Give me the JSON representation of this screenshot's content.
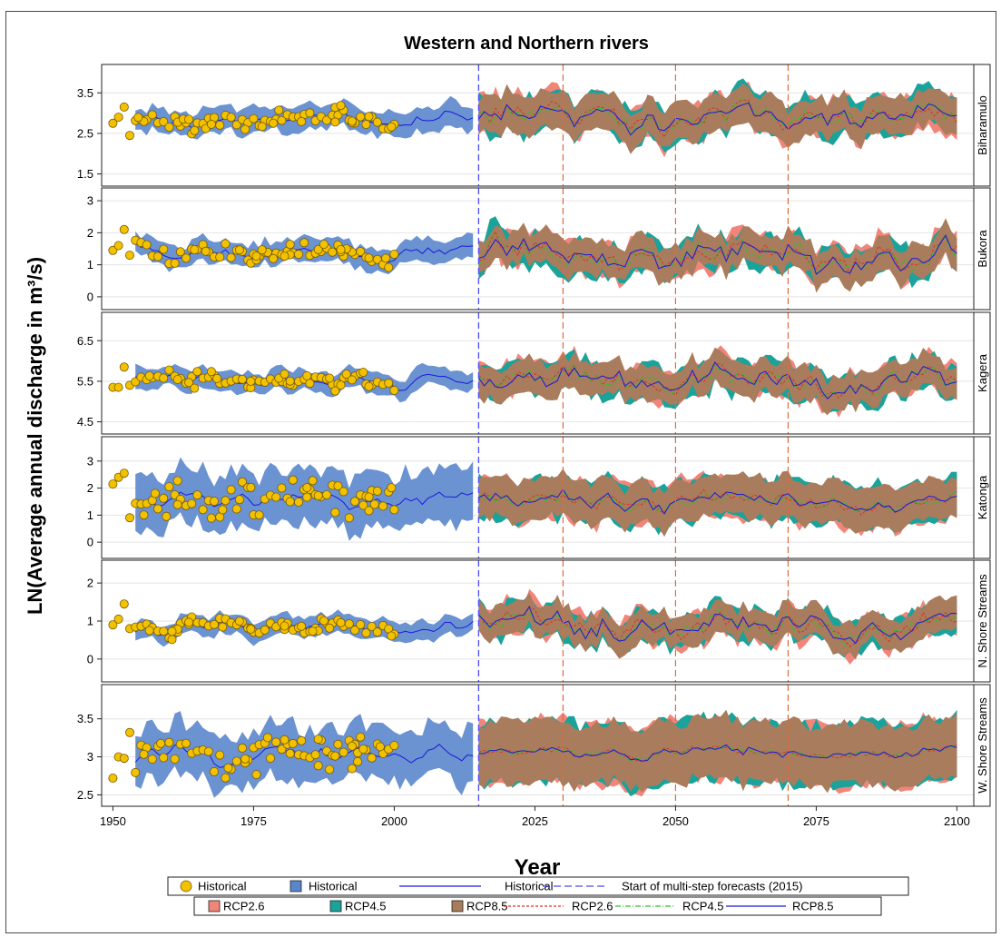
{
  "chart_data": {
    "type": "line",
    "title": "Western and Northern rivers",
    "xlabel": "Year",
    "ylabel": "LN(Average annual discharge in m³/s)",
    "xlim": [
      1948,
      2103
    ],
    "x_ticks": [
      1950,
      1975,
      2000,
      2025,
      2050,
      2075,
      2100
    ],
    "forecast_start_year": 2015,
    "period_markers": [
      2030,
      2050,
      2070
    ],
    "colors": {
      "historical_points": "#f2c200",
      "historical_band": "#5b86cc",
      "historical_line": "#1a1adc",
      "forecast_start_line": "#4b4bff",
      "period_line": "#e06a40",
      "rcp26_band": "#f1857a",
      "rcp45_band": "#1aa39a",
      "rcp85_band": "#a87c5c",
      "rcp26_line": "#e03020",
      "rcp45_line": "#30c030",
      "rcp85_line": "#1a1adc"
    },
    "panels": [
      {
        "name": "Biharamulo",
        "ylim": [
          1.2,
          4.2
        ],
        "ticks": [
          1.5,
          2.5,
          3.5
        ],
        "hist_mean": 2.85,
        "hist_amp": 0.3,
        "band_half": 0.3,
        "proj_mean": 2.9,
        "proj_amp": 0.33,
        "proj_band": 0.45,
        "early": [
          [
            1950,
            2.75
          ],
          [
            1951,
            2.9
          ],
          [
            1952,
            3.15
          ],
          [
            1953,
            2.45
          ]
        ],
        "noise_seed": 11,
        "trend": [
          0,
          0
        ]
      },
      {
        "name": "Bukora",
        "ylim": [
          -0.4,
          3.4
        ],
        "ticks": [
          0,
          1,
          2,
          3
        ],
        "hist_mean": 1.4,
        "hist_amp": 0.4,
        "band_half": 0.35,
        "proj_mean": 1.3,
        "proj_amp": 0.5,
        "proj_band": 0.5,
        "early": [
          [
            1950,
            1.45
          ],
          [
            1951,
            1.6
          ],
          [
            1952,
            2.1
          ],
          [
            1953,
            1.3
          ]
        ],
        "noise_seed": 23,
        "trend": [
          0,
          0
        ]
      },
      {
        "name": "Kagera",
        "ylim": [
          4.2,
          7.2
        ],
        "ticks": [
          4.5,
          5.5,
          6.5
        ],
        "hist_mean": 5.5,
        "hist_amp": 0.28,
        "band_half": 0.25,
        "proj_mean": 5.55,
        "proj_amp": 0.35,
        "proj_band": 0.4,
        "early": [
          [
            1950,
            5.35
          ],
          [
            1951,
            5.35
          ],
          [
            1952,
            5.85
          ],
          [
            1953,
            5.4
          ]
        ],
        "noise_seed": 37,
        "trend": [
          0,
          0
        ]
      },
      {
        "name": "Katonga",
        "ylim": [
          -0.6,
          3.9
        ],
        "ticks": [
          0,
          1,
          2,
          3
        ],
        "hist_mean": 1.5,
        "hist_amp": 0.5,
        "band_half": 1.0,
        "proj_mean": 1.5,
        "proj_amp": 0.4,
        "proj_band": 0.75,
        "early": [
          [
            1950,
            2.15
          ],
          [
            1951,
            2.4
          ],
          [
            1952,
            2.55
          ],
          [
            1953,
            0.9
          ]
        ],
        "noise_seed": 51,
        "trend": [
          0,
          0
        ]
      },
      {
        "name": "N. Shore Streams",
        "ylim": [
          -0.6,
          2.6
        ],
        "ticks": [
          0,
          1,
          2
        ],
        "hist_mean": 0.85,
        "hist_amp": 0.3,
        "band_half": 0.25,
        "proj_mean": 0.85,
        "proj_amp": 0.4,
        "proj_band": 0.4,
        "early": [
          [
            1950,
            0.9
          ],
          [
            1951,
            1.05
          ],
          [
            1952,
            1.45
          ],
          [
            1953,
            0.8
          ]
        ],
        "noise_seed": 67,
        "trend": [
          0,
          0
        ]
      },
      {
        "name": "W. Shore Streams",
        "ylim": [
          2.35,
          3.95
        ],
        "ticks": [
          2.5,
          3.0,
          3.5
        ],
        "hist_mean": 3.05,
        "hist_amp": 0.2,
        "band_half": 0.35,
        "proj_mean": 3.05,
        "proj_amp": 0.08,
        "proj_band": 0.4,
        "early": [
          [
            1950,
            2.72
          ],
          [
            1951,
            3.0
          ],
          [
            1952,
            2.98
          ],
          [
            1953,
            3.32
          ]
        ],
        "noise_seed": 79,
        "trend": [
          0,
          0
        ]
      }
    ],
    "legend": [
      {
        "label": "Historical",
        "kind": "point"
      },
      {
        "label": "Historical",
        "kind": "band"
      },
      {
        "label": "Historical",
        "kind": "line"
      },
      {
        "label": "Start of multi-step forecasts (2015)",
        "kind": "dash"
      },
      {
        "label": "RCP2.6",
        "kind": "band26"
      },
      {
        "label": "RCP4.5",
        "kind": "band45"
      },
      {
        "label": "RCP8.5",
        "kind": "band85"
      },
      {
        "label": "RCP2.6",
        "kind": "line26"
      },
      {
        "label": "RCP4.5",
        "kind": "line45"
      },
      {
        "label": "RCP8.5",
        "kind": "line85"
      }
    ]
  }
}
